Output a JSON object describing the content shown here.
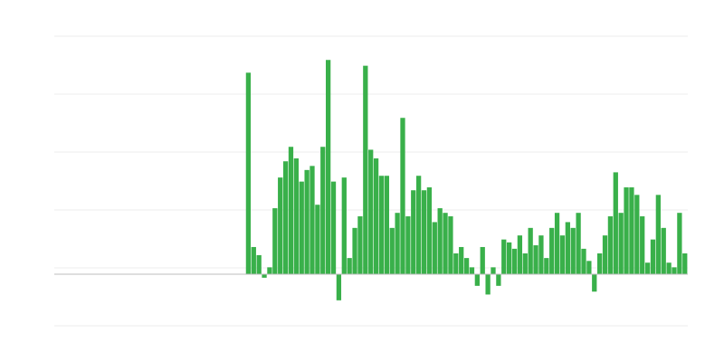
{
  "chart_data": {
    "type": "bar",
    "title": "",
    "xlabel": "",
    "ylabel": "",
    "ylim": [
      -8.9,
      41.1
    ],
    "gridlines": [
      -8.9,
      1.1,
      11.1,
      21.1,
      31.1,
      41.1
    ],
    "grid": true,
    "legend": "none",
    "bar_color": "#39b04a",
    "grid_color": "#ececec",
    "axis_color": "#bdbdbd",
    "values": [
      0,
      0,
      0,
      0,
      0,
      0,
      0,
      0,
      0,
      0,
      0,
      0,
      0,
      0,
      0,
      0,
      0,
      0,
      0,
      0,
      0,
      0,
      0,
      0,
      0,
      0,
      0,
      0,
      0,
      0,
      0,
      0,
      0,
      0,
      0,
      0,
      34.8,
      4.7,
      3.3,
      -0.6,
      1.2,
      11.4,
      16.7,
      19.5,
      22,
      20,
      16,
      18,
      18.7,
      12,
      22,
      37,
      16,
      -4.5,
      16.7,
      2.8,
      8,
      10,
      36,
      21.5,
      20,
      17,
      17,
      8,
      10.6,
      27,
      10,
      14.5,
      17,
      14.5,
      15,
      9,
      11.4,
      10.6,
      10,
      3.6,
      4.7,
      2.8,
      1.2,
      -2,
      4.7,
      -3.5,
      1.2,
      -2,
      6,
      5.5,
      4.4,
      6.7,
      3.6,
      8,
      5,
      6.7,
      2.8,
      8,
      10.6,
      6.7,
      9,
      8,
      10.6,
      4.4,
      2.3,
      -3,
      3.6,
      6.7,
      10,
      17.6,
      10.6,
      15,
      15,
      13.7,
      10,
      2,
      6,
      13.7,
      8,
      2,
      1.2,
      10.6,
      3.6
    ]
  }
}
